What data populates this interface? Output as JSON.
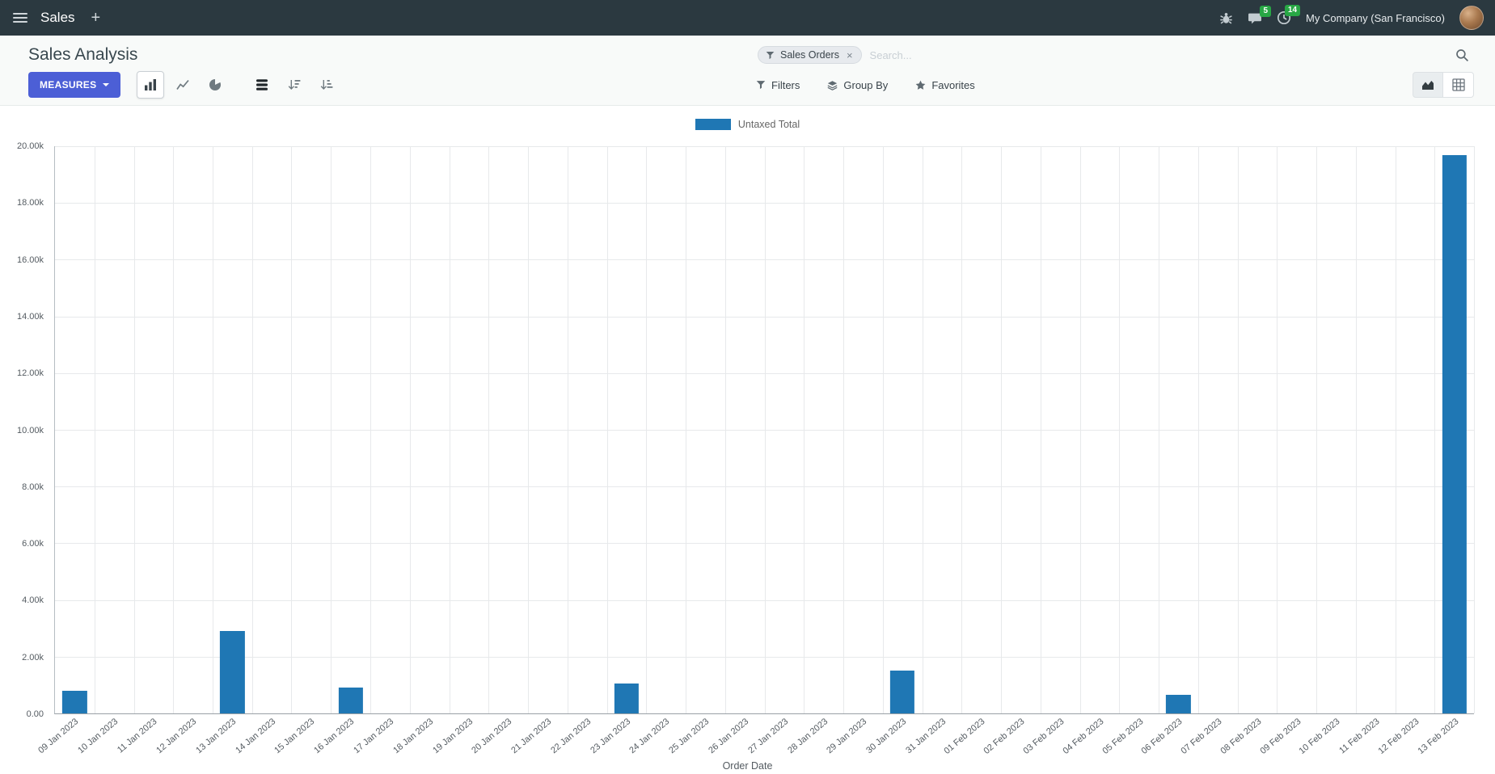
{
  "colors": {
    "navbar_bg": "#2b3940",
    "accent": "#4c5fd6",
    "bar": "#1f77b4",
    "badge": "#28a745"
  },
  "navbar": {
    "app_name": "Sales",
    "plus_label": "+",
    "messages_badge": "5",
    "activities_badge": "14",
    "company": "My Company (San Francisco)"
  },
  "control_panel": {
    "title": "Sales Analysis",
    "measures_label": "MEASURES",
    "search": {
      "facet_label": "Sales Orders",
      "facet_remove": "×",
      "placeholder": "Search..."
    },
    "menus": {
      "filters": "Filters",
      "group_by": "Group By",
      "favorites": "Favorites"
    }
  },
  "chart_data": {
    "type": "bar",
    "title": "",
    "xlabel": "Order Date",
    "ylabel": "",
    "ylim": [
      0,
      20000
    ],
    "ytick_step": 2000,
    "ytick_labels": [
      "0.00",
      "2.00k",
      "4.00k",
      "6.00k",
      "8.00k",
      "10.00k",
      "12.00k",
      "14.00k",
      "16.00k",
      "18.00k",
      "20.00k"
    ],
    "grid": true,
    "legend_position": "top",
    "categories": [
      "09 Jan 2023",
      "10 Jan 2023",
      "11 Jan 2023",
      "12 Jan 2023",
      "13 Jan 2023",
      "14 Jan 2023",
      "15 Jan 2023",
      "16 Jan 2023",
      "17 Jan 2023",
      "18 Jan 2023",
      "19 Jan 2023",
      "20 Jan 2023",
      "21 Jan 2023",
      "22 Jan 2023",
      "23 Jan 2023",
      "24 Jan 2023",
      "25 Jan 2023",
      "26 Jan 2023",
      "27 Jan 2023",
      "28 Jan 2023",
      "29 Jan 2023",
      "30 Jan 2023",
      "31 Jan 2023",
      "01 Feb 2023",
      "02 Feb 2023",
      "03 Feb 2023",
      "04 Feb 2023",
      "05 Feb 2023",
      "06 Feb 2023",
      "07 Feb 2023",
      "08 Feb 2023",
      "09 Feb 2023",
      "10 Feb 2023",
      "11 Feb 2023",
      "12 Feb 2023",
      "13 Feb 2023"
    ],
    "series": [
      {
        "name": "Untaxed Total",
        "color": "#1f77b4",
        "values": [
          800,
          0,
          0,
          0,
          2900,
          0,
          0,
          900,
          0,
          0,
          0,
          0,
          0,
          0,
          1050,
          0,
          0,
          0,
          0,
          0,
          0,
          1500,
          0,
          0,
          0,
          0,
          0,
          0,
          650,
          0,
          0,
          0,
          0,
          0,
          0,
          19700
        ]
      }
    ]
  }
}
